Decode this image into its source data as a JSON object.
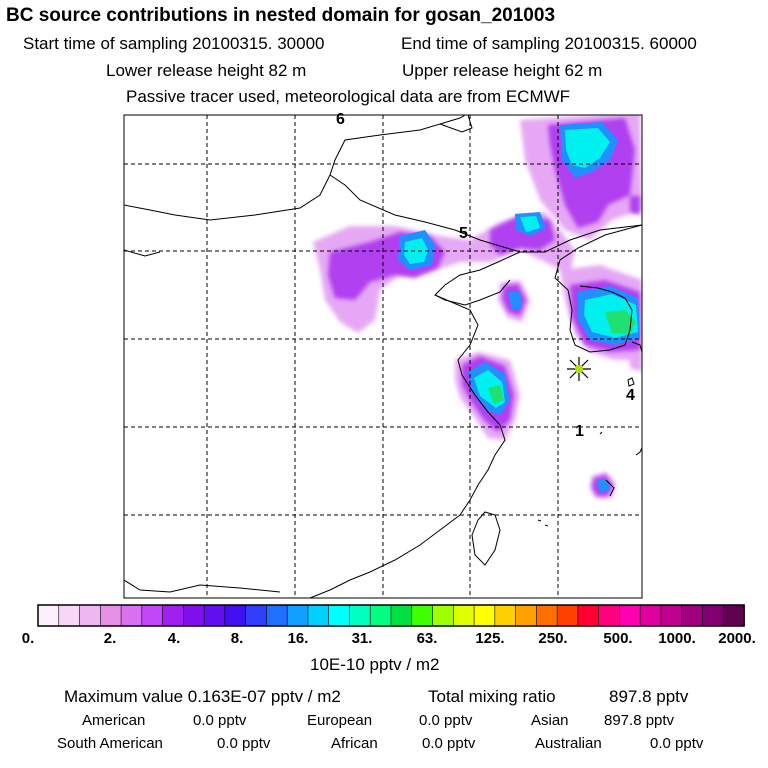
{
  "header": {
    "title": "BC  source contributions in nested domain for gosan_201003",
    "start_label": "Start time of sampling 20100315. 30000",
    "end_label": "End time of sampling 20100315. 60000",
    "lower_label": "Lower release height   82 m",
    "upper_label": "Upper release height   62 m",
    "note": "Passive tracer used, meteorological data are from ECMWF"
  },
  "map": {
    "region_labels": [
      "6",
      "5",
      "4",
      "1"
    ],
    "marker": "receptor-star"
  },
  "colorbar": {
    "colors": [
      "#fdf0fd",
      "#f8d8f8",
      "#f0b8f0",
      "#e890e8",
      "#d870f0",
      "#c048f8",
      "#a020f0",
      "#8010f0",
      "#6010f0",
      "#4010f0",
      "#3040f8",
      "#2070ff",
      "#10a0ff",
      "#00d0ff",
      "#00ffff",
      "#00ffc0",
      "#00ff80",
      "#00e040",
      "#40ff00",
      "#a0ff00",
      "#e0ff00",
      "#ffff00",
      "#ffd000",
      "#ffa000",
      "#ff7000",
      "#ff4000",
      "#ff0030",
      "#ff0080",
      "#ff00b0",
      "#e000a0",
      "#c00090",
      "#a00080",
      "#800070",
      "#600050"
    ],
    "labels": [
      "0.",
      "2.",
      "4.",
      "8.",
      "16.",
      "31.",
      "63.",
      "125.",
      "250.",
      "500.",
      "1000.",
      "2000."
    ],
    "unit": "10E-10 pptv / m2"
  },
  "stats": {
    "max_label": "Maximum value  0.163E-07 pptv / m2",
    "total_label": "Total mixing ratio",
    "total_value": "897.8 pptv",
    "regions": [
      {
        "name": "American",
        "value": "0.0 pptv"
      },
      {
        "name": "European",
        "value": "0.0 pptv"
      },
      {
        "name": "Asian",
        "value": "897.8 pptv"
      },
      {
        "name": "South American",
        "value": "0.0 pptv"
      },
      {
        "name": "African",
        "value": "0.0 pptv"
      },
      {
        "name": "Australian",
        "value": "0.0 pptv"
      }
    ]
  }
}
